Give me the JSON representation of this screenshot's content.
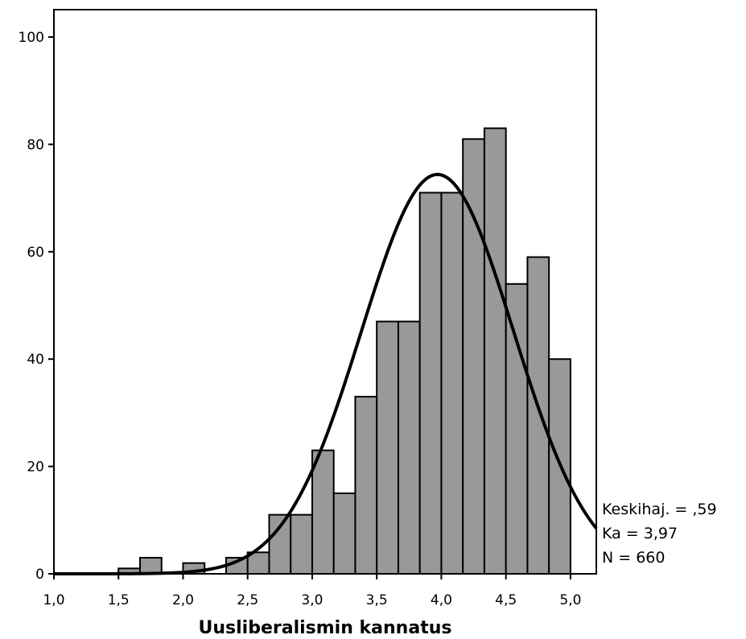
{
  "chart_data": {
    "type": "bar",
    "subtype": "histogram",
    "title": "",
    "xlabel": "Uusliberalismin kannatus",
    "ylabel": "",
    "xlim": [
      1.0,
      5.2
    ],
    "ylim": [
      0,
      105
    ],
    "x_ticks": [
      "1,0",
      "1,5",
      "2,0",
      "2,5",
      "3,0",
      "3,5",
      "4,0",
      "4,5",
      "5,0"
    ],
    "y_ticks": [
      "0",
      "20",
      "40",
      "60",
      "80",
      "100"
    ],
    "bin_width": 0.1667,
    "bin_starts": [
      1.5,
      1.6667,
      1.8333,
      2.0,
      2.1667,
      2.3333,
      2.5,
      2.6667,
      2.8333,
      3.0,
      3.1667,
      3.3333,
      3.5,
      3.6667,
      3.8333,
      4.0,
      4.1667,
      4.3333,
      4.5,
      4.6667,
      4.8333
    ],
    "values": [
      1,
      3,
      0,
      2,
      0,
      3,
      4,
      11,
      11,
      23,
      15,
      33,
      47,
      47,
      71,
      71,
      81,
      83,
      54,
      59,
      40
    ],
    "bar_color": "#999999",
    "edge_color": "#000000",
    "normal_curve": {
      "mean": 3.97,
      "std": 0.59,
      "n": 660
    },
    "grid": false,
    "stats": {
      "std_line": "Keskihaj. = ,59",
      "mean_line": "Ka = 3,97",
      "n_line": "N = 660"
    }
  }
}
